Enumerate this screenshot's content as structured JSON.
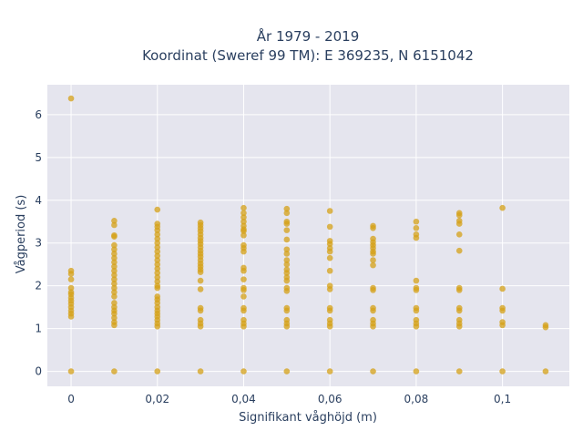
{
  "chart_data": {
    "type": "scatter",
    "title_line1": "År 1979 - 2019",
    "title_line2": "Koordinat (Sweref 99 TM): E 369235, N 6151042",
    "xlabel": "Signifikant våghöjd (m)",
    "ylabel": "Vågperiod (s)",
    "xlim": [
      -0.0055,
      0.1155
    ],
    "ylim": [
      -0.35,
      6.7
    ],
    "x_ticks": [
      {
        "value": 0,
        "label": "0"
      },
      {
        "value": 0.02,
        "label": "0,02"
      },
      {
        "value": 0.04,
        "label": "0,04"
      },
      {
        "value": 0.06,
        "label": "0,06"
      },
      {
        "value": 0.08,
        "label": "0,08"
      },
      {
        "value": 0.1,
        "label": "0,1"
      }
    ],
    "y_ticks": [
      {
        "value": 0,
        "label": "0"
      },
      {
        "value": 1,
        "label": "1"
      },
      {
        "value": 2,
        "label": "2"
      },
      {
        "value": 3,
        "label": "3"
      },
      {
        "value": 4,
        "label": "4"
      },
      {
        "value": 5,
        "label": "5"
      },
      {
        "value": 6,
        "label": "6"
      }
    ],
    "grid": true,
    "marker_color": "#d4a017",
    "plot_bg": "#e5e5ee",
    "points": [
      [
        0,
        6.38
      ],
      [
        0,
        2.35
      ],
      [
        0,
        2.28
      ],
      [
        0,
        2.15
      ],
      [
        0,
        1.95
      ],
      [
        0,
        1.85
      ],
      [
        0,
        1.8
      ],
      [
        0,
        1.72
      ],
      [
        0,
        1.65
      ],
      [
        0,
        1.58
      ],
      [
        0,
        1.5
      ],
      [
        0,
        1.42
      ],
      [
        0,
        1.35
      ],
      [
        0,
        1.28
      ],
      [
        0,
        0
      ],
      [
        0.01,
        3.52
      ],
      [
        0.01,
        3.42
      ],
      [
        0.01,
        3.18
      ],
      [
        0.01,
        3.15
      ],
      [
        0.01,
        2.95
      ],
      [
        0.01,
        2.85
      ],
      [
        0.01,
        2.75
      ],
      [
        0.01,
        2.65
      ],
      [
        0.01,
        2.55
      ],
      [
        0.01,
        2.45
      ],
      [
        0.01,
        2.35
      ],
      [
        0.01,
        2.25
      ],
      [
        0.01,
        2.15
      ],
      [
        0.01,
        2.05
      ],
      [
        0.01,
        1.95
      ],
      [
        0.01,
        1.85
      ],
      [
        0.01,
        1.75
      ],
      [
        0.01,
        1.6
      ],
      [
        0.01,
        1.5
      ],
      [
        0.01,
        1.42
      ],
      [
        0.01,
        1.35
      ],
      [
        0.01,
        1.25
      ],
      [
        0.01,
        1.15
      ],
      [
        0.01,
        1.08
      ],
      [
        0.01,
        0
      ],
      [
        0.02,
        3.78
      ],
      [
        0.02,
        3.45
      ],
      [
        0.02,
        3.38
      ],
      [
        0.02,
        3.3
      ],
      [
        0.02,
        3.2
      ],
      [
        0.02,
        3.1
      ],
      [
        0.02,
        3.0
      ],
      [
        0.02,
        2.9
      ],
      [
        0.02,
        2.8
      ],
      [
        0.02,
        2.7
      ],
      [
        0.02,
        2.6
      ],
      [
        0.02,
        2.5
      ],
      [
        0.02,
        2.4
      ],
      [
        0.02,
        2.3
      ],
      [
        0.02,
        2.2
      ],
      [
        0.02,
        2.1
      ],
      [
        0.02,
        2.0
      ],
      [
        0.02,
        1.95
      ],
      [
        0.02,
        1.75
      ],
      [
        0.02,
        1.68
      ],
      [
        0.02,
        1.6
      ],
      [
        0.02,
        1.5
      ],
      [
        0.02,
        1.42
      ],
      [
        0.02,
        1.35
      ],
      [
        0.02,
        1.28
      ],
      [
        0.02,
        1.2
      ],
      [
        0.02,
        1.12
      ],
      [
        0.02,
        1.05
      ],
      [
        0.02,
        0
      ],
      [
        0.03,
        3.48
      ],
      [
        0.03,
        3.42
      ],
      [
        0.03,
        3.35
      ],
      [
        0.03,
        3.28
      ],
      [
        0.03,
        3.2
      ],
      [
        0.03,
        3.12
      ],
      [
        0.03,
        3.05
      ],
      [
        0.03,
        2.98
      ],
      [
        0.03,
        2.9
      ],
      [
        0.03,
        2.82
      ],
      [
        0.03,
        2.75
      ],
      [
        0.03,
        2.68
      ],
      [
        0.03,
        2.6
      ],
      [
        0.03,
        2.52
      ],
      [
        0.03,
        2.45
      ],
      [
        0.03,
        2.38
      ],
      [
        0.03,
        2.32
      ],
      [
        0.03,
        2.12
      ],
      [
        0.03,
        1.92
      ],
      [
        0.03,
        1.48
      ],
      [
        0.03,
        1.42
      ],
      [
        0.03,
        1.2
      ],
      [
        0.03,
        1.12
      ],
      [
        0.03,
        1.05
      ],
      [
        0.03,
        0
      ],
      [
        0.04,
        3.82
      ],
      [
        0.04,
        3.7
      ],
      [
        0.04,
        3.6
      ],
      [
        0.04,
        3.5
      ],
      [
        0.04,
        3.4
      ],
      [
        0.04,
        3.32
      ],
      [
        0.04,
        3.28
      ],
      [
        0.04,
        3.18
      ],
      [
        0.04,
        2.95
      ],
      [
        0.04,
        2.88
      ],
      [
        0.04,
        2.8
      ],
      [
        0.04,
        2.42
      ],
      [
        0.04,
        2.35
      ],
      [
        0.04,
        2.15
      ],
      [
        0.04,
        1.95
      ],
      [
        0.04,
        1.9
      ],
      [
        0.04,
        1.75
      ],
      [
        0.04,
        1.48
      ],
      [
        0.04,
        1.42
      ],
      [
        0.04,
        1.2
      ],
      [
        0.04,
        1.12
      ],
      [
        0.04,
        1.05
      ],
      [
        0.04,
        0
      ],
      [
        0.05,
        3.8
      ],
      [
        0.05,
        3.7
      ],
      [
        0.05,
        3.5
      ],
      [
        0.05,
        3.45
      ],
      [
        0.05,
        3.3
      ],
      [
        0.05,
        3.08
      ],
      [
        0.05,
        2.85
      ],
      [
        0.05,
        2.75
      ],
      [
        0.05,
        2.6
      ],
      [
        0.05,
        2.5
      ],
      [
        0.05,
        2.38
      ],
      [
        0.05,
        2.3
      ],
      [
        0.05,
        2.2
      ],
      [
        0.05,
        2.12
      ],
      [
        0.05,
        1.95
      ],
      [
        0.05,
        1.88
      ],
      [
        0.05,
        1.48
      ],
      [
        0.05,
        1.42
      ],
      [
        0.05,
        1.2
      ],
      [
        0.05,
        1.12
      ],
      [
        0.05,
        1.05
      ],
      [
        0.05,
        0
      ],
      [
        0.06,
        3.75
      ],
      [
        0.06,
        3.38
      ],
      [
        0.06,
        3.05
      ],
      [
        0.06,
        2.98
      ],
      [
        0.06,
        2.88
      ],
      [
        0.06,
        2.8
      ],
      [
        0.06,
        2.65
      ],
      [
        0.06,
        2.35
      ],
      [
        0.06,
        2.0
      ],
      [
        0.06,
        1.92
      ],
      [
        0.06,
        1.48
      ],
      [
        0.06,
        1.42
      ],
      [
        0.06,
        1.2
      ],
      [
        0.06,
        1.12
      ],
      [
        0.06,
        1.05
      ],
      [
        0.06,
        0
      ],
      [
        0.07,
        3.4
      ],
      [
        0.07,
        3.35
      ],
      [
        0.07,
        3.1
      ],
      [
        0.07,
        3.02
      ],
      [
        0.07,
        2.95
      ],
      [
        0.07,
        2.88
      ],
      [
        0.07,
        2.8
      ],
      [
        0.07,
        2.75
      ],
      [
        0.07,
        2.6
      ],
      [
        0.07,
        2.48
      ],
      [
        0.07,
        1.95
      ],
      [
        0.07,
        1.9
      ],
      [
        0.07,
        1.48
      ],
      [
        0.07,
        1.42
      ],
      [
        0.07,
        1.2
      ],
      [
        0.07,
        1.12
      ],
      [
        0.07,
        1.05
      ],
      [
        0.07,
        0
      ],
      [
        0.08,
        3.5
      ],
      [
        0.08,
        3.35
      ],
      [
        0.08,
        3.2
      ],
      [
        0.08,
        3.12
      ],
      [
        0.08,
        2.12
      ],
      [
        0.08,
        1.95
      ],
      [
        0.08,
        1.9
      ],
      [
        0.08,
        1.48
      ],
      [
        0.08,
        1.42
      ],
      [
        0.08,
        1.2
      ],
      [
        0.08,
        1.12
      ],
      [
        0.08,
        1.05
      ],
      [
        0.08,
        0
      ],
      [
        0.09,
        3.7
      ],
      [
        0.09,
        3.65
      ],
      [
        0.09,
        3.52
      ],
      [
        0.09,
        3.45
      ],
      [
        0.09,
        3.2
      ],
      [
        0.09,
        2.82
      ],
      [
        0.09,
        1.95
      ],
      [
        0.09,
        1.9
      ],
      [
        0.09,
        1.48
      ],
      [
        0.09,
        1.42
      ],
      [
        0.09,
        1.2
      ],
      [
        0.09,
        1.12
      ],
      [
        0.09,
        1.05
      ],
      [
        0.09,
        0
      ],
      [
        0.1,
        3.82
      ],
      [
        0.1,
        1.93
      ],
      [
        0.1,
        1.48
      ],
      [
        0.1,
        1.42
      ],
      [
        0.1,
        1.15
      ],
      [
        0.1,
        1.08
      ],
      [
        0.1,
        0
      ],
      [
        0.11,
        1.08
      ],
      [
        0.11,
        1.03
      ],
      [
        0.11,
        0
      ]
    ]
  }
}
